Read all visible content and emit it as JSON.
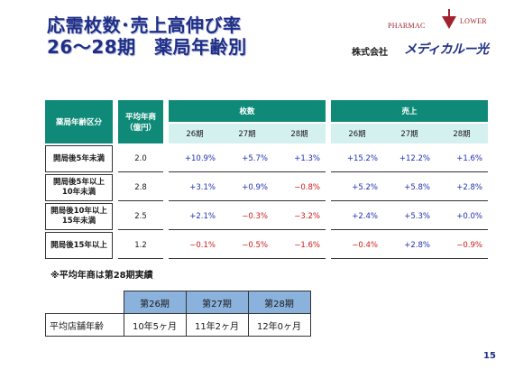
{
  "title": {
    "line1": "応需枚数･売上高伸び率",
    "line2": "26～28期　薬局年齢別"
  },
  "logo": {
    "pharmac": "PHARMAC",
    "lower": "LOWER",
    "company": "株式会社",
    "brand": "メディカルー光"
  },
  "main_table": {
    "age_header": "薬局年齢区分",
    "avg_header_line1": "平均年商",
    "avg_header_line2": "（億円）",
    "count_header": "枚数",
    "sales_header": "売上",
    "periods": [
      "26期",
      "27期",
      "28期"
    ],
    "rows": [
      {
        "label1": "開局後5年未満",
        "label2": "",
        "avg": "2.0",
        "count": [
          "+10.9%",
          "+5.7%",
          "+1.3%"
        ],
        "sales": [
          "+15.2%",
          "+12.2%",
          "+1.6%"
        ]
      },
      {
        "label1": "開局後5年以上",
        "label2": "10年未満",
        "avg": "2.8",
        "count": [
          "+3.1%",
          "+0.9%",
          "−0.8%"
        ],
        "sales": [
          "+5.2%",
          "+5.8%",
          "+2.8%"
        ]
      },
      {
        "label1": "開局後10年以上",
        "label2": "15年未満",
        "avg": "2.5",
        "count": [
          "+2.1%",
          "−0.3%",
          "−3.2%"
        ],
        "sales": [
          "+2.4%",
          "+5.3%",
          "+0.0%"
        ]
      },
      {
        "label1": "開局後15年以上",
        "label2": "",
        "avg": "1.2",
        "count": [
          "−0.1%",
          "−0.5%",
          "−1.6%"
        ],
        "sales": [
          "−0.4%",
          "+2.8%",
          "−0.9%"
        ]
      }
    ]
  },
  "note": "※平均年商は第28期実績",
  "sub_table": {
    "headers": [
      "第26期",
      "第27期",
      "第28期"
    ],
    "row_label": "平均店舗年齢",
    "values": [
      "10年5ヶ月",
      "11年2ヶ月",
      "12年0ヶ月"
    ]
  },
  "page_number": "15",
  "colors": {
    "title": "#1f2f86",
    "header_teal": "#0f8a78",
    "subheader_light": "#d4f0ef",
    "positive": "#1f2fb0",
    "negative": "#d01818",
    "sub_header_blue": "#8ab2dc"
  }
}
